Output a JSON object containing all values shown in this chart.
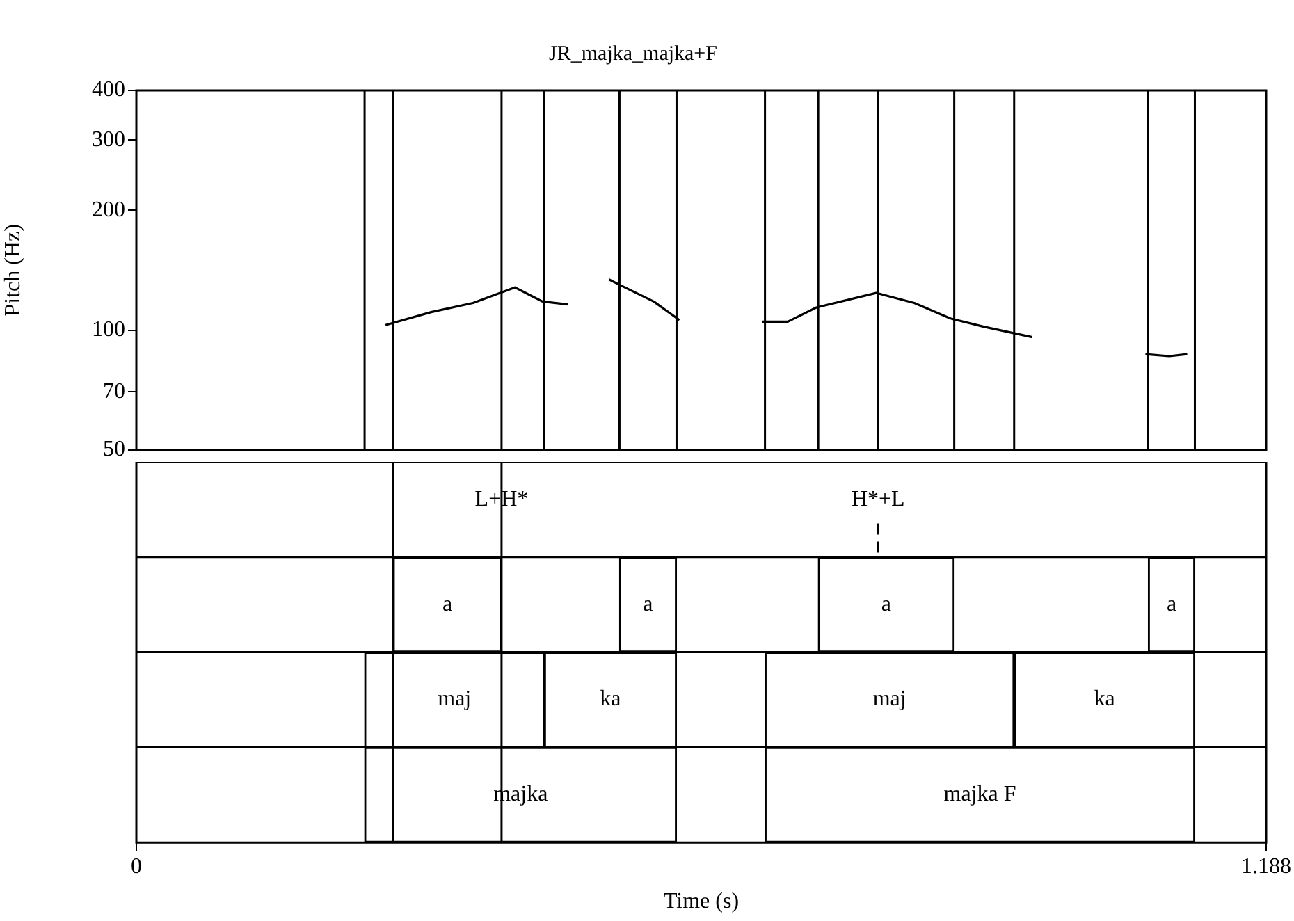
{
  "chart_data": [
    {
      "type": "line",
      "title": "JR_majka_majka+F",
      "ylabel": "Pitch (Hz)",
      "log": "y",
      "marker": "none",
      "tick_labels": "y",
      "xlim": [
        0,
        1.188
      ],
      "ylim": [
        50,
        400
      ],
      "yticks": [
        50,
        70,
        100,
        200,
        300,
        400
      ],
      "x": [
        0.262,
        0.31,
        0.354,
        0.398,
        0.427,
        0.454,
        0.475,
        0.497,
        0.508,
        0.544,
        0.571,
        0.615,
        0.658,
        0.685,
        0.715,
        0.778,
        0.818,
        0.856,
        0.891,
        0.942,
        1.0,
        1.061,
        1.086,
        1.105
      ],
      "series": [
        {
          "color": "#000000",
          "values": [
            103,
            111,
            117,
            128,
            118,
            116,
            null,
            134,
            130,
            118,
            106,
            null,
            105,
            105,
            114,
            124,
            117,
            107,
            102,
            96,
            null,
            87,
            86,
            87
          ]
        }
      ],
      "ref_lines": [
        {
          "axis": "x",
          "value": 0.24
        },
        {
          "axis": "x",
          "value": 0.27
        },
        {
          "axis": "x",
          "value": 0.384
        },
        {
          "axis": "x",
          "value": 0.429
        },
        {
          "axis": "x",
          "value": 0.508
        },
        {
          "axis": "x",
          "value": 0.568
        },
        {
          "axis": "x",
          "value": 0.661
        },
        {
          "axis": "x",
          "value": 0.717
        },
        {
          "axis": "x",
          "value": 0.78
        },
        {
          "axis": "x",
          "value": 0.86
        },
        {
          "axis": "x",
          "value": 0.923
        },
        {
          "axis": "x",
          "value": 1.064
        },
        {
          "axis": "x",
          "value": 1.113
        }
      ]
    },
    {
      "type": "bar",
      "orientation": "horizontal",
      "tick_labels": "x",
      "categories": [
        null,
        null,
        null,
        null
      ],
      "xlabel": "Time (s)",
      "xlim": [
        0,
        1.188
      ],
      "xticks": [
        0,
        1.188
      ],
      "series": [
        {
          "color": "#ffffff",
          "base": [
            null,
            0.27,
            null,
            null
          ],
          "values": [
            null,
            0.114,
            null,
            null
          ],
          "value_labels": [
            null,
            "a",
            null,
            null
          ]
        },
        {
          "color": "#ffffff",
          "base": [
            null,
            0.508,
            null,
            null
          ],
          "values": [
            null,
            0.06,
            null,
            null
          ],
          "value_labels": [
            null,
            "a",
            null,
            null
          ]
        },
        {
          "color": "#ffffff",
          "base": [
            null,
            0.717,
            null,
            null
          ],
          "values": [
            null,
            0.143,
            null,
            null
          ],
          "value_labels": [
            null,
            "a",
            null,
            null
          ]
        },
        {
          "color": "#ffffff",
          "base": [
            null,
            1.064,
            null,
            null
          ],
          "values": [
            null,
            0.049,
            null,
            null
          ],
          "value_labels": [
            null,
            "a",
            null,
            null
          ]
        },
        {
          "color": "#ffffff",
          "base": [
            null,
            null,
            0.24,
            null
          ],
          "values": [
            null,
            null,
            0.189,
            null
          ],
          "value_labels": [
            null,
            null,
            "maj",
            null
          ]
        },
        {
          "color": "#ffffff",
          "base": [
            null,
            null,
            0.429,
            null
          ],
          "values": [
            null,
            null,
            0.139,
            null
          ],
          "value_labels": [
            null,
            null,
            "ka",
            null
          ]
        },
        {
          "color": "#ffffff",
          "base": [
            null,
            null,
            0.661,
            null
          ],
          "values": [
            null,
            null,
            0.262,
            null
          ],
          "value_labels": [
            null,
            null,
            "maj",
            null
          ]
        },
        {
          "color": "#ffffff",
          "base": [
            null,
            null,
            0.923,
            null
          ],
          "values": [
            null,
            null,
            0.19,
            null
          ],
          "value_labels": [
            null,
            null,
            "ka",
            null
          ]
        },
        {
          "color": "#ffffff",
          "base": [
            null,
            null,
            null,
            0.24
          ],
          "values": [
            null,
            null,
            null,
            0.328
          ],
          "value_labels": [
            null,
            null,
            null,
            "majka"
          ]
        },
        {
          "color": "#ffffff",
          "base": [
            null,
            null,
            null,
            0.661
          ],
          "values": [
            null,
            null,
            null,
            0.452
          ],
          "value_labels": [
            null,
            null,
            null,
            "majka F"
          ]
        }
      ],
      "ref_lines": [
        {
          "axis": "x",
          "value": 0.27
        },
        {
          "axis": "x",
          "value": 0.384,
          "label": "L+H*"
        },
        {
          "axis": "x",
          "value": 0.78,
          "label": "H*+L",
          "line_style": "dashed"
        }
      ]
    }
  ]
}
